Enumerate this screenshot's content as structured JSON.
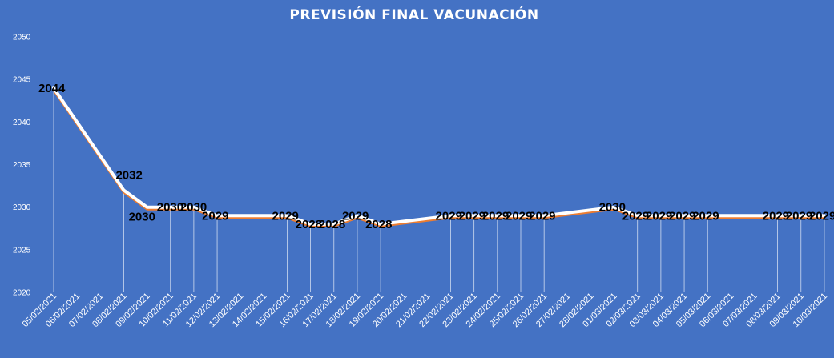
{
  "chart_data": {
    "type": "line",
    "title": "PREVISIÓN FINAL VACUNACIÓN",
    "xlabel": "",
    "ylabel": "",
    "ylim": [
      2020,
      2050
    ],
    "yticks": [
      2020,
      2025,
      2030,
      2035,
      2040,
      2045,
      2050
    ],
    "grid": false,
    "legend": "none",
    "colors": {
      "background": "#4472c4",
      "line": "#ffffff",
      "shadow_line": "#ed7d31",
      "drop_lines": "#ffffff",
      "labels": "#000000"
    },
    "categories": [
      "05/02/2021",
      "06/02/2021",
      "07/02/2021",
      "08/02/2021",
      "09/02/2021",
      "10/02/2021",
      "11/02/2021",
      "12/02/2021",
      "13/02/2021",
      "14/02/2021",
      "15/02/2021",
      "16/02/2021",
      "17/02/2021",
      "18/02/2021",
      "19/02/2021",
      "20/02/2021",
      "21/02/2021",
      "22/02/2021",
      "23/02/2021",
      "24/02/2021",
      "25/02/2021",
      "26/02/2021",
      "27/02/2021",
      "28/02/2021",
      "01/03/2021",
      "02/03/2021",
      "03/03/2021",
      "04/03/2021",
      "05/03/2021",
      "06/03/2021",
      "07/03/2021",
      "08/03/2021",
      "09/03/2021",
      "10/03/2021"
    ],
    "series": [
      {
        "values": [
          2044,
          null,
          null,
          2032,
          2030,
          2030,
          2030,
          2029,
          null,
          null,
          2029,
          2028,
          2028,
          2029,
          2028,
          null,
          null,
          2029,
          2029,
          2029,
          2029,
          2029,
          null,
          null,
          2030,
          2029,
          2029,
          2029,
          2029,
          null,
          null,
          2029,
          2029,
          2029
        ],
        "labels": [
          "2044",
          null,
          null,
          "2032",
          "2030",
          "2030",
          "2030",
          "2029",
          null,
          null,
          "2029",
          "2028",
          "2028",
          "2029",
          "2028",
          null,
          null,
          "2029",
          "2029",
          "2029",
          "2029",
          "2029",
          null,
          null,
          "2030",
          "2029",
          "2029",
          "2029",
          "2029",
          null,
          null,
          "2029",
          "2029",
          "2029"
        ]
      }
    ]
  }
}
